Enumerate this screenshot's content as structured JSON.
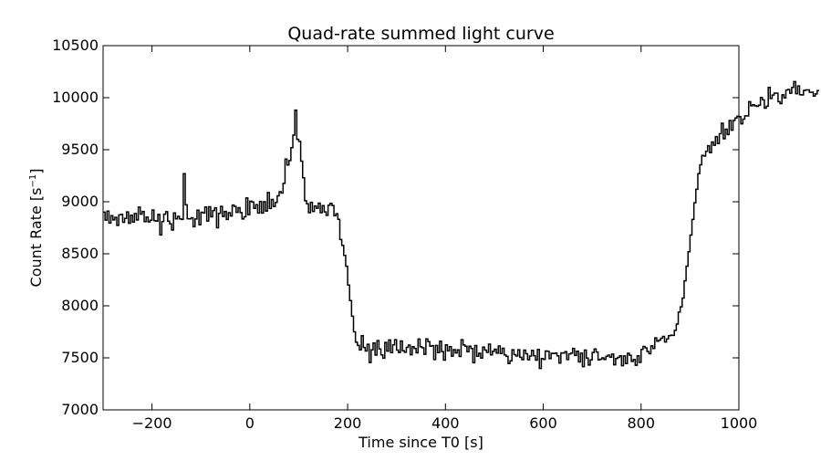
{
  "chart_data": {
    "type": "line",
    "title": "Quad-rate summed light curve",
    "xlabel": "Time since T0 [s]",
    "ylabel_text": "Count Rate [s",
    "ylabel_sup": "−1",
    "ylabel_close": "]",
    "xlim": [
      -300,
      1000
    ],
    "ylim": [
      7000,
      10500
    ],
    "x_ticks": [
      -200,
      0,
      200,
      400,
      600,
      800,
      1000
    ],
    "x_tick_labels": [
      "−200",
      "0",
      "200",
      "400",
      "600",
      "800",
      "1000"
    ],
    "y_ticks": [
      7000,
      7500,
      8000,
      8500,
      9000,
      9500,
      10000,
      10500
    ],
    "y_tick_labels": [
      "7000",
      "7500",
      "8000",
      "8500",
      "9000",
      "9500",
      "10000",
      "10500"
    ],
    "grid": false,
    "line_color": "#000000",
    "series": [
      {
        "x_start": -300,
        "x_step": 4,
        "values": [
          8900,
          8823,
          8910,
          8795,
          8866,
          8826,
          8850,
          8773,
          8874,
          8878,
          8803,
          8840,
          8902,
          8793,
          8871,
          8805,
          8887,
          8825,
          8948,
          8880,
          8907,
          8809,
          8852,
          8806,
          8822,
          8921,
          8818,
          8814,
          8878,
          8681,
          8809,
          8880,
          8905,
          8814,
          8787,
          8728,
          8893,
          8835,
          8860,
          8836,
          8830,
          9270,
          8970,
          8837,
          8835,
          8847,
          8760,
          8834,
          8919,
          8778,
          8899,
          8891,
          8949,
          8815,
          8952,
          8855,
          8916,
          8942,
          8750,
          8888,
          8955,
          8859,
          8907,
          8830,
          8895,
          8863,
          8968,
          8955,
          8898,
          8943,
          8896,
          8834,
          8855,
          9036,
          8876,
          9006,
          8998,
          8936,
          8972,
          8891,
          9003,
          8891,
          9000,
          8910,
          9089,
          8935,
          9022,
          8954,
          8993,
          9057,
          9097,
          9083,
          9177,
          9410,
          9353,
          9396,
          9520,
          9640,
          9880,
          9600,
          9580,
          9390,
          9230,
          9010,
          8980,
          8895,
          8995,
          8907,
          8959,
          8938,
          8987,
          8895,
          8963,
          8902,
          8869,
          8967,
          8985,
          8964,
          8865,
          8885,
          8831,
          8637,
          8580,
          8485,
          8380,
          8200,
          8050,
          7900,
          7750,
          7650,
          7620,
          7577,
          7713,
          7600,
          7566,
          7630,
          7455,
          7577,
          7643,
          7526,
          7666,
          7586,
          7529,
          7497,
          7648,
          7565,
          7672,
          7549,
          7625,
          7674,
          7574,
          7552,
          7662,
          7568,
          7554,
          7601,
          7623,
          7530,
          7607,
          7590,
          7548,
          7681,
          7606,
          7597,
          7534,
          7682,
          7656,
          7612,
          7617,
          7484,
          7619,
          7550,
          7659,
          7560,
          7478,
          7625,
          7567,
          7607,
          7516,
          7579,
          7547,
          7577,
          7513,
          7674,
          7624,
          7612,
          7558,
          7612,
          7590,
          7453,
          7618,
          7515,
          7544,
          7498,
          7603,
          7574,
          7553,
          7632,
          7528,
          7562,
          7583,
          7545,
          7614,
          7542,
          7592,
          7527,
          7514,
          7445,
          7472,
          7578,
          7531,
          7517,
          7578,
          7505,
          7483,
          7575,
          7539,
          7481,
          7517,
          7571,
          7521,
          7478,
          7580,
          7398,
          7493,
          7485,
          7566,
          7563,
          7492,
          7544,
          7542,
          7546,
          7520,
          7449,
          7547,
          7546,
          7559,
          7484,
          7537,
          7545,
          7591,
          7523,
          7564,
          7461,
          7545,
          7416,
          7574,
          7498,
          7431,
          7480,
          7552,
          7586,
          7556,
          7480,
          7487,
          7500,
          7485,
          7514,
          7526,
          7507,
          7536,
          7433,
          7493,
          7504,
          7520,
          7424,
          7519,
          7445,
          7544,
          7524,
          7466,
          7484,
          7429,
          7520,
          7456,
          7581,
          7610,
          7596,
          7561,
          7539,
          7615,
          7590,
          7692,
          7660,
          7670,
          7689,
          7706,
          7652,
          7682,
          7713,
          7717,
          7716,
          7764,
          7825,
          7940,
          7990,
          8075,
          8240,
          8380,
          8520,
          8680,
          8830,
          8990,
          9120,
          9270,
          9355,
          9445,
          9439,
          9485,
          9538,
          9472,
          9575,
          9543,
          9626,
          9559,
          9654,
          9754,
          9605,
          9697,
          9646,
          9781,
          9688,
          9782,
          9805,
          9821,
          9818,
          9749,
          9794,
          9826,
          9825,
          9962,
          9922,
          9932,
          9922,
          9917,
          9928,
          10001,
          9979,
          9899,
          9918,
          10099,
          9992,
          10025,
          10044,
          10043,
          9962,
          9943,
          10027,
          9998,
          10073,
          10079,
          10043,
          10099,
          10155,
          10038,
          10113,
          10028,
          10026,
          10069,
          10074,
          10075,
          10052,
          10053,
          10015,
          10036,
          10068
        ]
      }
    ]
  }
}
